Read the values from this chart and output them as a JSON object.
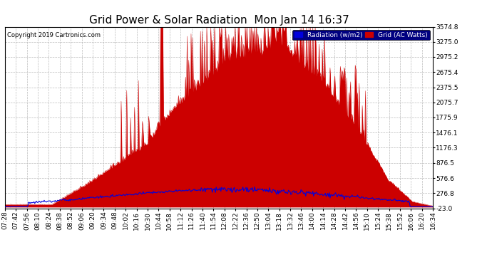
{
  "title": "Grid Power & Solar Radiation  Mon Jan 14 16:37",
  "copyright": "Copyright 2019 Cartronics.com",
  "legend_radiation": "Radiation (w/m2)",
  "legend_grid": "Grid (AC Watts)",
  "yticks": [
    3574.8,
    3275.0,
    2975.2,
    2675.4,
    2375.5,
    2075.7,
    1775.9,
    1476.1,
    1176.3,
    876.5,
    576.6,
    276.8,
    -23.0
  ],
  "ymin": -23.0,
  "ymax": 3574.8,
  "background_color": "#ffffff",
  "plot_bg_color": "#ffffff",
  "grid_color": "#bbbbbb",
  "radiation_color": "#0000dd",
  "grid_power_color": "#cc0000",
  "grid_power_fill": "#cc0000",
  "title_fontsize": 11,
  "tick_fontsize": 6.5,
  "xtick_labels": [
    "07:28",
    "07:42",
    "07:56",
    "08:10",
    "08:24",
    "08:38",
    "08:52",
    "09:06",
    "09:20",
    "09:34",
    "09:48",
    "10:02",
    "10:16",
    "10:30",
    "10:44",
    "10:58",
    "11:12",
    "11:26",
    "11:40",
    "11:54",
    "12:08",
    "12:22",
    "12:36",
    "12:50",
    "13:04",
    "13:18",
    "13:32",
    "13:46",
    "14:00",
    "14:14",
    "14:28",
    "14:42",
    "14:56",
    "15:10",
    "15:24",
    "15:38",
    "15:52",
    "16:06",
    "16:20",
    "16:34"
  ]
}
